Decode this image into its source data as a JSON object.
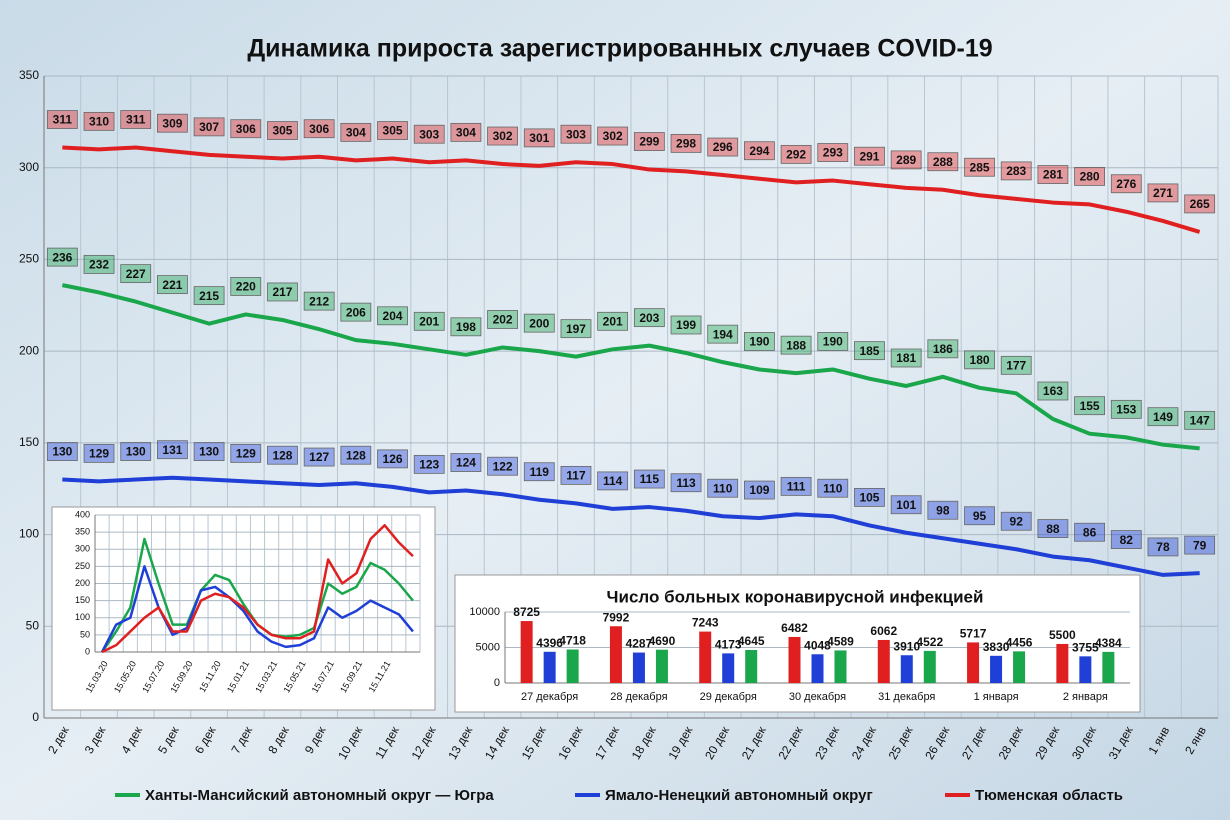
{
  "chart_data": [
    {
      "type": "line",
      "title": "Динамика прироста зарегистрированных случаев COVID-19",
      "categories": [
        "2 дек",
        "3 дек",
        "4 дек",
        "5 дек",
        "6 дек",
        "7 дек",
        "8 дек",
        "9 дек",
        "10 дек",
        "11 дек",
        "12 дек",
        "13 дек",
        "14 дек",
        "15 дек",
        "16 дек",
        "17 дек",
        "18 дек",
        "19 дек",
        "20 дек",
        "21 дек",
        "22 дек",
        "23 дек",
        "24 дек",
        "25 дек",
        "26 дек",
        "27 дек",
        "28 дек",
        "29 дек",
        "30 дек",
        "31 дек",
        "1 янв",
        "2 янв"
      ],
      "series": [
        {
          "name": "Ханты-Мансийский автономный округ — Югра",
          "color": "#1aa64a",
          "values": [
            236,
            232,
            227,
            221,
            215,
            220,
            217,
            212,
            206,
            204,
            201,
            198,
            202,
            200,
            197,
            201,
            203,
            199,
            194,
            190,
            188,
            190,
            185,
            181,
            186,
            180,
            177,
            163,
            155,
            153,
            149,
            147
          ]
        },
        {
          "name": "Ямало-Ненецкий автономный округ",
          "color": "#1f3fd6",
          "values": [
            130,
            129,
            130,
            131,
            130,
            129,
            128,
            127,
            128,
            126,
            123,
            124,
            122,
            119,
            117,
            114,
            115,
            113,
            110,
            109,
            111,
            110,
            105,
            101,
            98,
            95,
            92,
            88,
            86,
            82,
            78,
            79
          ]
        },
        {
          "name": "Тюменская область",
          "color": "#e02020",
          "values": [
            311,
            310,
            311,
            309,
            307,
            306,
            305,
            306,
            304,
            305,
            303,
            304,
            302,
            301,
            303,
            302,
            299,
            298,
            296,
            294,
            292,
            293,
            291,
            289,
            288,
            285,
            283,
            281,
            280,
            276,
            271,
            265
          ]
        }
      ],
      "ylim": [
        0,
        350
      ],
      "yticks": [
        0,
        50,
        100,
        150,
        200,
        250,
        300,
        350
      ],
      "grid": true,
      "legend": "bottom"
    },
    {
      "type": "line",
      "categories": [
        "15.03.20",
        null,
        "15.05.20",
        null,
        "15.07.20",
        null,
        "15.09.20",
        null,
        "15.11.20",
        null,
        "15.01.21",
        null,
        "15.03.21",
        null,
        "15.05.21",
        null,
        "15.07.21",
        null,
        "15.09.21",
        null,
        "15.11.21",
        null,
        null
      ],
      "series": [
        {
          "color": "#1aa64a",
          "values": [
            0,
            60,
            130,
            330,
            200,
            80,
            80,
            180,
            225,
            210,
            140,
            80,
            50,
            45,
            50,
            70,
            200,
            170,
            190,
            260,
            240,
            200,
            150
          ]
        },
        {
          "color": "#1f3fd6",
          "values": [
            0,
            80,
            100,
            250,
            130,
            50,
            70,
            180,
            190,
            160,
            120,
            60,
            30,
            15,
            20,
            40,
            130,
            100,
            120,
            150,
            130,
            110,
            60
          ]
        },
        {
          "color": "#e02020",
          "values": [
            0,
            20,
            60,
            100,
            130,
            60,
            60,
            150,
            170,
            160,
            130,
            80,
            50,
            40,
            40,
            60,
            270,
            200,
            230,
            330,
            370,
            320,
            280
          ]
        }
      ],
      "ylim": [
        0,
        400
      ],
      "yticks": [
        0,
        50,
        100,
        150,
        200,
        250,
        300,
        350,
        400
      ],
      "grid": true
    },
    {
      "type": "bar",
      "title": "Число больных коронавирусной  инфекцией",
      "categories": [
        "27 декабря",
        "28 декабря",
        "29 декабря",
        "30 декабря",
        "31 декабря",
        "1 января",
        "2 января"
      ],
      "series": [
        {
          "color": "#e02020",
          "values": [
            8725,
            7992,
            7243,
            6482,
            6062,
            5717,
            5500
          ]
        },
        {
          "color": "#1f3fd6",
          "values": [
            4396,
            4287,
            4173,
            4048,
            3910,
            3830,
            3755
          ]
        },
        {
          "color": "#1aa64a",
          "values": [
            4718,
            4690,
            4645,
            4589,
            4522,
            4456,
            4384
          ]
        }
      ],
      "ylim": [
        0,
        10000
      ],
      "yticks": [
        0,
        5000,
        10000
      ],
      "grid": true
    }
  ]
}
